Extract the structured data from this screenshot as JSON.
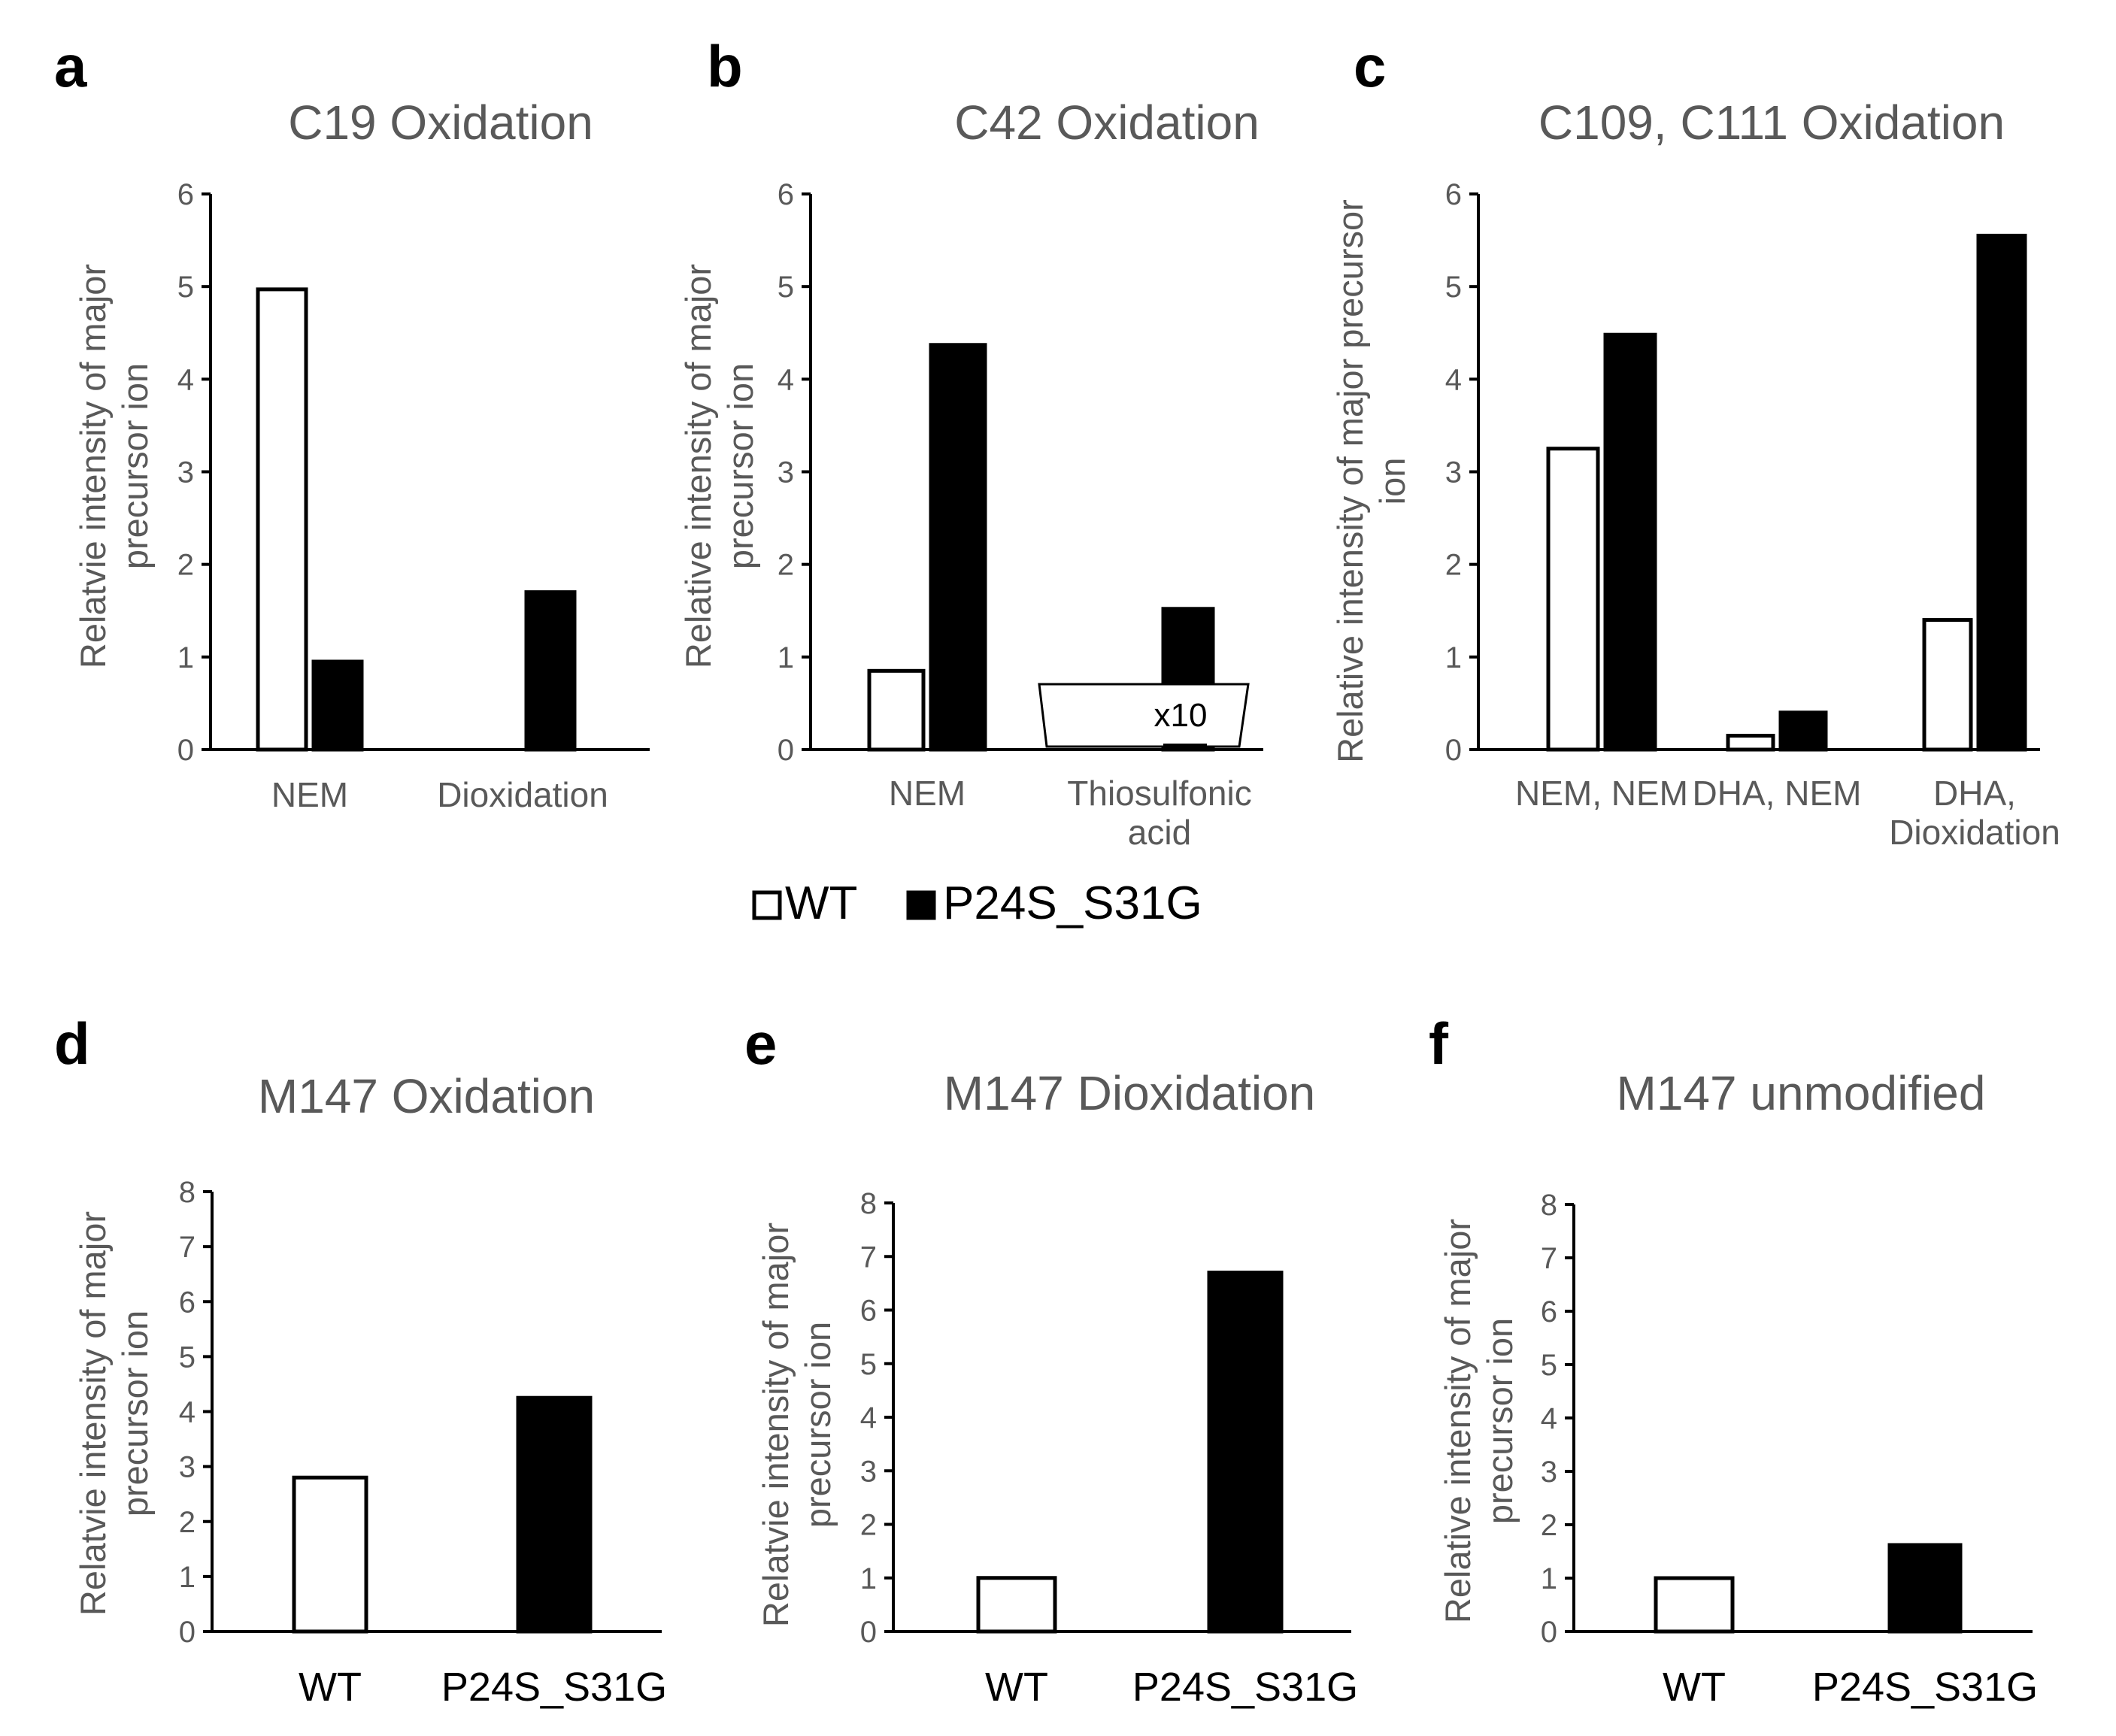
{
  "legend": {
    "series": [
      {
        "name": "WT",
        "fill": "#ffffff"
      },
      {
        "name": "P24S_S31G",
        "fill": "#000000"
      }
    ]
  },
  "chart_data": [
    {
      "letter": "a",
      "type": "bar",
      "title": "C19 Oxidation",
      "ylabel": [
        "Relatvie intensity of major",
        "precursor ion"
      ],
      "ylim": [
        0,
        6
      ],
      "yticks": [
        "0",
        "1",
        "2",
        "3",
        "4",
        "5",
        "6"
      ],
      "categories": [
        [
          "NEM"
        ],
        [
          "Dioxidation"
        ]
      ],
      "series": [
        {
          "name": "WT",
          "values": [
            4.97,
            0
          ]
        },
        {
          "name": "P24S_S31G",
          "values": [
            0.95,
            1.7
          ]
        }
      ]
    },
    {
      "letter": "b",
      "type": "bar",
      "title": "C42 Oxidation",
      "ylabel": [
        "Relative intensity of major",
        "precursor ion"
      ],
      "ylim": [
        0,
        6
      ],
      "yticks": [
        "0",
        "1",
        "2",
        "3",
        "4",
        "5",
        "6"
      ],
      "categories": [
        [
          "NEM"
        ],
        [
          "Thiosulfonic",
          "acid"
        ]
      ],
      "series": [
        {
          "name": "WT",
          "values": [
            0.85,
            0
          ]
        },
        {
          "name": "P24S_S31G",
          "values": [
            4.37,
            1.52
          ]
        }
      ],
      "inset": {
        "label": "x10",
        "category_index": 1,
        "values": [
          0,
          0.05
        ]
      }
    },
    {
      "letter": "c",
      "type": "bar",
      "title": "C109, C111 Oxidation",
      "ylabel": [
        "Relative intensity of major precursor",
        "ion"
      ],
      "ylim": [
        0,
        6
      ],
      "yticks": [
        "0",
        "1",
        "2",
        "3",
        "4",
        "5",
        "6"
      ],
      "categories": [
        [
          "NEM,  NEM"
        ],
        [
          "DHA, NEM"
        ],
        [
          "DHA,",
          "Dioxidation"
        ]
      ],
      "series": [
        {
          "name": "WT",
          "values": [
            3.25,
            0.15,
            1.4
          ]
        },
        {
          "name": "P24S_S31G",
          "values": [
            4.48,
            0.4,
            5.55
          ]
        }
      ]
    },
    {
      "letter": "d",
      "type": "bar",
      "title": "M147 Oxidation",
      "ylabel": [
        "Relatvie intensity of major",
        "precursor ion"
      ],
      "ylim": [
        0,
        8
      ],
      "yticks": [
        "0",
        "1",
        "2",
        "3",
        "4",
        "5",
        "6",
        "7",
        "8"
      ],
      "categories": [
        [
          "WT"
        ],
        [
          "P24S_S31G"
        ]
      ],
      "series": [
        {
          "name": "WT",
          "values": [
            2.8,
            null
          ]
        },
        {
          "name": "P24S_S31G",
          "values": [
            null,
            4.25
          ]
        }
      ]
    },
    {
      "letter": "e",
      "type": "bar",
      "title": "M147 Dioxidation",
      "ylabel": [
        "Relatvie intensity of major",
        "precursor ion"
      ],
      "ylim": [
        0,
        8
      ],
      "yticks": [
        "0",
        "1",
        "2",
        "3",
        "4",
        "5",
        "6",
        "7",
        "8"
      ],
      "categories": [
        [
          "WT"
        ],
        [
          "P24S_S31G"
        ]
      ],
      "series": [
        {
          "name": "WT",
          "values": [
            1.0,
            null
          ]
        },
        {
          "name": "P24S_S31G",
          "values": [
            null,
            6.7
          ]
        }
      ]
    },
    {
      "letter": "f",
      "type": "bar",
      "title": "M147 unmodified",
      "ylabel": [
        "Relative intensity of major",
        "precursor ion"
      ],
      "ylim": [
        0,
        8
      ],
      "yticks": [
        "0",
        "1",
        "2",
        "3",
        "4",
        "5",
        "6",
        "7",
        "8"
      ],
      "categories": [
        [
          "WT"
        ],
        [
          "P24S_S31G"
        ]
      ],
      "series": [
        {
          "name": "WT",
          "values": [
            1.0,
            null
          ]
        },
        {
          "name": "P24S_S31G",
          "values": [
            null,
            1.62
          ]
        }
      ]
    }
  ]
}
